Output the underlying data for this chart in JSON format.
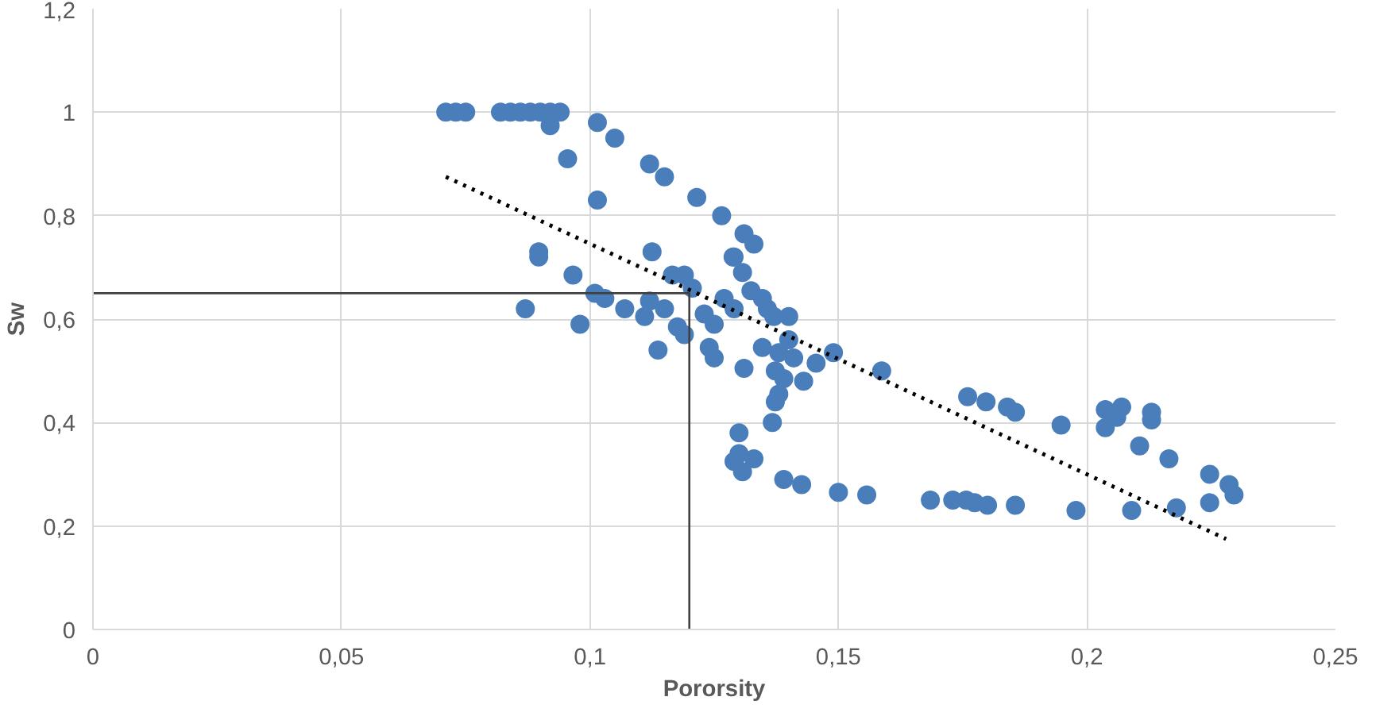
{
  "chart_data": {
    "type": "scatter",
    "xlabel": "Pororsity",
    "ylabel": "Sw",
    "xlim": [
      0,
      0.25
    ],
    "xticks": [
      {
        "value": 0,
        "label": "0"
      },
      {
        "value": 0.05,
        "label": "0,05"
      },
      {
        "value": 0.1,
        "label": "0,1"
      },
      {
        "value": 0.15,
        "label": "0,15"
      },
      {
        "value": 0.2,
        "label": "0,2"
      },
      {
        "value": 0.25,
        "label": "0,25"
      }
    ],
    "ylim": [
      0,
      1.2
    ],
    "yticks": [
      {
        "value": 0,
        "label": "0"
      },
      {
        "value": 0.2,
        "label": "0,2"
      },
      {
        "value": 0.4,
        "label": "0,4"
      },
      {
        "value": 0.6,
        "label": "0,6"
      },
      {
        "value": 0.8,
        "label": "0,8"
      },
      {
        "value": 1,
        "label": "1"
      },
      {
        "value": 1.2,
        "label": "1,2"
      }
    ],
    "grid": true,
    "marker": "circle",
    "series": [
      {
        "color": "#4a7ebb",
        "x": [
          0.071,
          0.073,
          0.075,
          0.082,
          0.084,
          0.086,
          0.088,
          0.09,
          0.092,
          0.094,
          0.092,
          0.1015,
          0.105,
          0.0955,
          0.1015,
          0.112,
          0.115,
          0.1215,
          0.1265,
          0.131,
          0.133,
          0.129,
          0.1125,
          0.0897,
          0.0897,
          0.0966,
          0.101,
          0.103,
          0.107,
          0.087,
          0.098,
          0.112,
          0.111,
          0.115,
          0.1166,
          0.119,
          0.1206,
          0.1137,
          0.1176,
          0.119,
          0.123,
          0.125,
          0.124,
          0.125,
          0.127,
          0.129,
          0.1288,
          0.1307,
          0.1324,
          0.1347,
          0.1357,
          0.137,
          0.14,
          0.14,
          0.1347,
          0.138,
          0.141,
          0.1455,
          0.149,
          0.1587,
          0.1373,
          0.139,
          0.143,
          0.138,
          0.1373,
          0.131,
          0.1367,
          0.13,
          0.13,
          0.129,
          0.133,
          0.1307,
          0.139,
          0.1426,
          0.15,
          0.1557,
          0.1685,
          0.173,
          0.1757,
          0.1774,
          0.18,
          0.1856,
          0.1978,
          0.209,
          0.218,
          0.2247,
          0.2247,
          0.2286,
          0.2296,
          0.2165,
          0.2106,
          0.176,
          0.1797,
          0.184,
          0.1856,
          0.1948,
          0.2037,
          0.207,
          0.206,
          0.2037,
          0.213,
          0.213
        ],
        "values": [
          1,
          1,
          1,
          1,
          1,
          1,
          1,
          1,
          1,
          1,
          0.974,
          0.98,
          0.95,
          0.91,
          0.83,
          0.9,
          0.875,
          0.835,
          0.8,
          0.765,
          0.745,
          0.72,
          0.73,
          0.73,
          0.72,
          0.685,
          0.65,
          0.64,
          0.62,
          0.62,
          0.59,
          0.635,
          0.605,
          0.62,
          0.685,
          0.685,
          0.66,
          0.54,
          0.585,
          0.57,
          0.61,
          0.59,
          0.545,
          0.525,
          0.64,
          0.62,
          0.72,
          0.69,
          0.655,
          0.64,
          0.62,
          0.605,
          0.605,
          0.56,
          0.545,
          0.535,
          0.525,
          0.515,
          0.535,
          0.5,
          0.5,
          0.485,
          0.48,
          0.455,
          0.44,
          0.505,
          0.4,
          0.38,
          0.34,
          0.325,
          0.33,
          0.305,
          0.29,
          0.28,
          0.265,
          0.26,
          0.25,
          0.25,
          0.25,
          0.245,
          0.24,
          0.24,
          0.23,
          0.23,
          0.235,
          0.245,
          0.3,
          0.28,
          0.26,
          0.33,
          0.355,
          0.45,
          0.44,
          0.43,
          0.42,
          0.395,
          0.425,
          0.43,
          0.41,
          0.39,
          0.42,
          0.405
        ]
      },
      {
        "type": "line",
        "color": "#000000",
        "line_style": "dotted",
        "marker": "none",
        "x": [
          0.071,
          0.228
        ],
        "values": [
          0.875,
          0.175
        ]
      },
      {
        "type": "line",
        "color": "#404040",
        "line_style": "solid",
        "marker": "none",
        "x": [
          0,
          0.12,
          0.12
        ],
        "values": [
          0.65,
          0.65,
          0
        ]
      }
    ]
  }
}
